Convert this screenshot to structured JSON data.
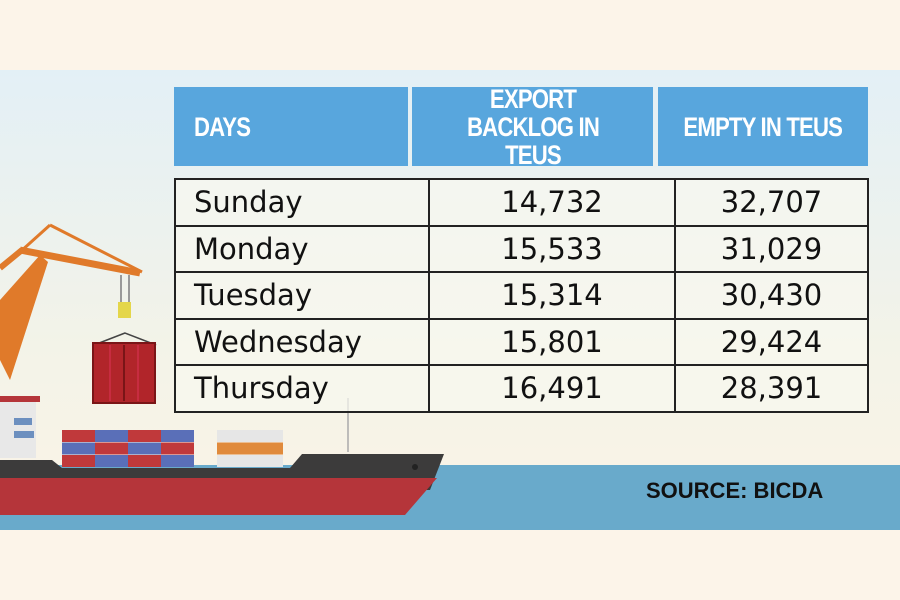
{
  "headers": [
    "DAYS",
    "EXPORT BACKLOG IN TEUS",
    "EMPTY IN TEUS"
  ],
  "rows": [
    {
      "day": "Sunday",
      "export": "14,732",
      "empty": "32,707"
    },
    {
      "day": "Monday",
      "export": "15,533",
      "empty": "31,029"
    },
    {
      "day": "Tuesday",
      "export": "15,314",
      "empty": "30,430"
    },
    {
      "day": "Wednesday",
      "export": "15,801",
      "empty": "29,424"
    },
    {
      "day": "Thursday",
      "export": "16,491",
      "empty": "28,391"
    }
  ],
  "source": "SOURCE: BICDA",
  "colors": {
    "header": "#58a6dd",
    "sea": "#69aacb",
    "ship_hull": "#b5353a",
    "crane": "#e07a2a"
  },
  "chart_data": {
    "type": "table",
    "columns": [
      "DAYS",
      "EXPORT BACKLOG IN TEUS",
      "EMPTY IN TEUS"
    ],
    "rows": [
      [
        "Sunday",
        14732,
        32707
      ],
      [
        "Monday",
        15533,
        31029
      ],
      [
        "Tuesday",
        15314,
        30430
      ],
      [
        "Wednesday",
        15801,
        29424
      ],
      [
        "Thursday",
        16491,
        28391
      ]
    ]
  }
}
